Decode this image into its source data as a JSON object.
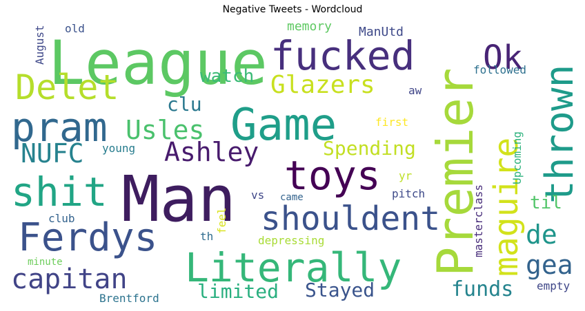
{
  "title": "Negative Tweets - Wordcloud",
  "words": [
    {
      "text": "Man",
      "color": "#3e1d5f"
    },
    {
      "text": "Game",
      "color": "#1f9e89"
    },
    {
      "text": "League",
      "color": "#5cc863"
    },
    {
      "text": "Premier",
      "color": "#a6d93b"
    },
    {
      "text": "Literally",
      "color": "#35b779"
    },
    {
      "text": "fucked",
      "color": "#472f7d"
    },
    {
      "text": "toys",
      "color": "#440154"
    },
    {
      "text": "Ferdys",
      "color": "#3b528b"
    },
    {
      "text": "pram",
      "color": "#31688e"
    },
    {
      "text": "shit",
      "color": "#21a585"
    },
    {
      "text": "thrown",
      "color": "#1e9b8a"
    },
    {
      "text": "maguire",
      "color": "#d2e21b"
    },
    {
      "text": "Delet",
      "color": "#b5de2b"
    },
    {
      "text": "Ok",
      "color": "#482475"
    },
    {
      "text": "shouldent",
      "color": "#3b528b"
    },
    {
      "text": "Ashley",
      "color": "#481b6d"
    },
    {
      "text": "capitan",
      "color": "#414487"
    },
    {
      "text": "Glazers",
      "color": "#c8e020"
    },
    {
      "text": "Usles",
      "color": "#4ac16d"
    },
    {
      "text": "NUFC",
      "color": "#26828e"
    },
    {
      "text": "Spending",
      "color": "#c2df23"
    },
    {
      "text": "watch",
      "color": "#3aba76"
    },
    {
      "text": "clu",
      "color": "#2a788e"
    },
    {
      "text": "de",
      "color": "#1f958b"
    },
    {
      "text": "gea",
      "color": "#33638d"
    },
    {
      "text": "til",
      "color": "#52c569"
    },
    {
      "text": "funds",
      "color": "#25848e"
    },
    {
      "text": "limited",
      "color": "#29af7f"
    },
    {
      "text": "Stayed",
      "color": "#3a548c"
    },
    {
      "text": "Brentford",
      "color": "#2c738e"
    },
    {
      "text": "empty",
      "color": "#3f4788"
    },
    {
      "text": "memory",
      "color": "#5ec962"
    },
    {
      "text": "ManUtd",
      "color": "#3e4989"
    },
    {
      "text": "August",
      "color": "#3f4889"
    },
    {
      "text": "old",
      "color": "#3b528b"
    },
    {
      "text": "followed",
      "color": "#2d708e"
    },
    {
      "text": "aw",
      "color": "#404688"
    },
    {
      "text": "first",
      "color": "#fde725"
    },
    {
      "text": "Upcoming",
      "color": "#2db27d"
    },
    {
      "text": "young",
      "color": "#287d8e"
    },
    {
      "text": "yr",
      "color": "#bddf26"
    },
    {
      "text": "pitch",
      "color": "#3e4a89"
    },
    {
      "text": "masterclass",
      "color": "#472c7a"
    },
    {
      "text": "vs",
      "color": "#3f4788"
    },
    {
      "text": "came",
      "color": "#33638d"
    },
    {
      "text": "club",
      "color": "#33628d"
    },
    {
      "text": "feel",
      "color": "#d8e219"
    },
    {
      "text": "th",
      "color": "#2f6c8e"
    },
    {
      "text": "depressing",
      "color": "#a8db34"
    },
    {
      "text": "minute",
      "color": "#6ccd5a"
    }
  ]
}
